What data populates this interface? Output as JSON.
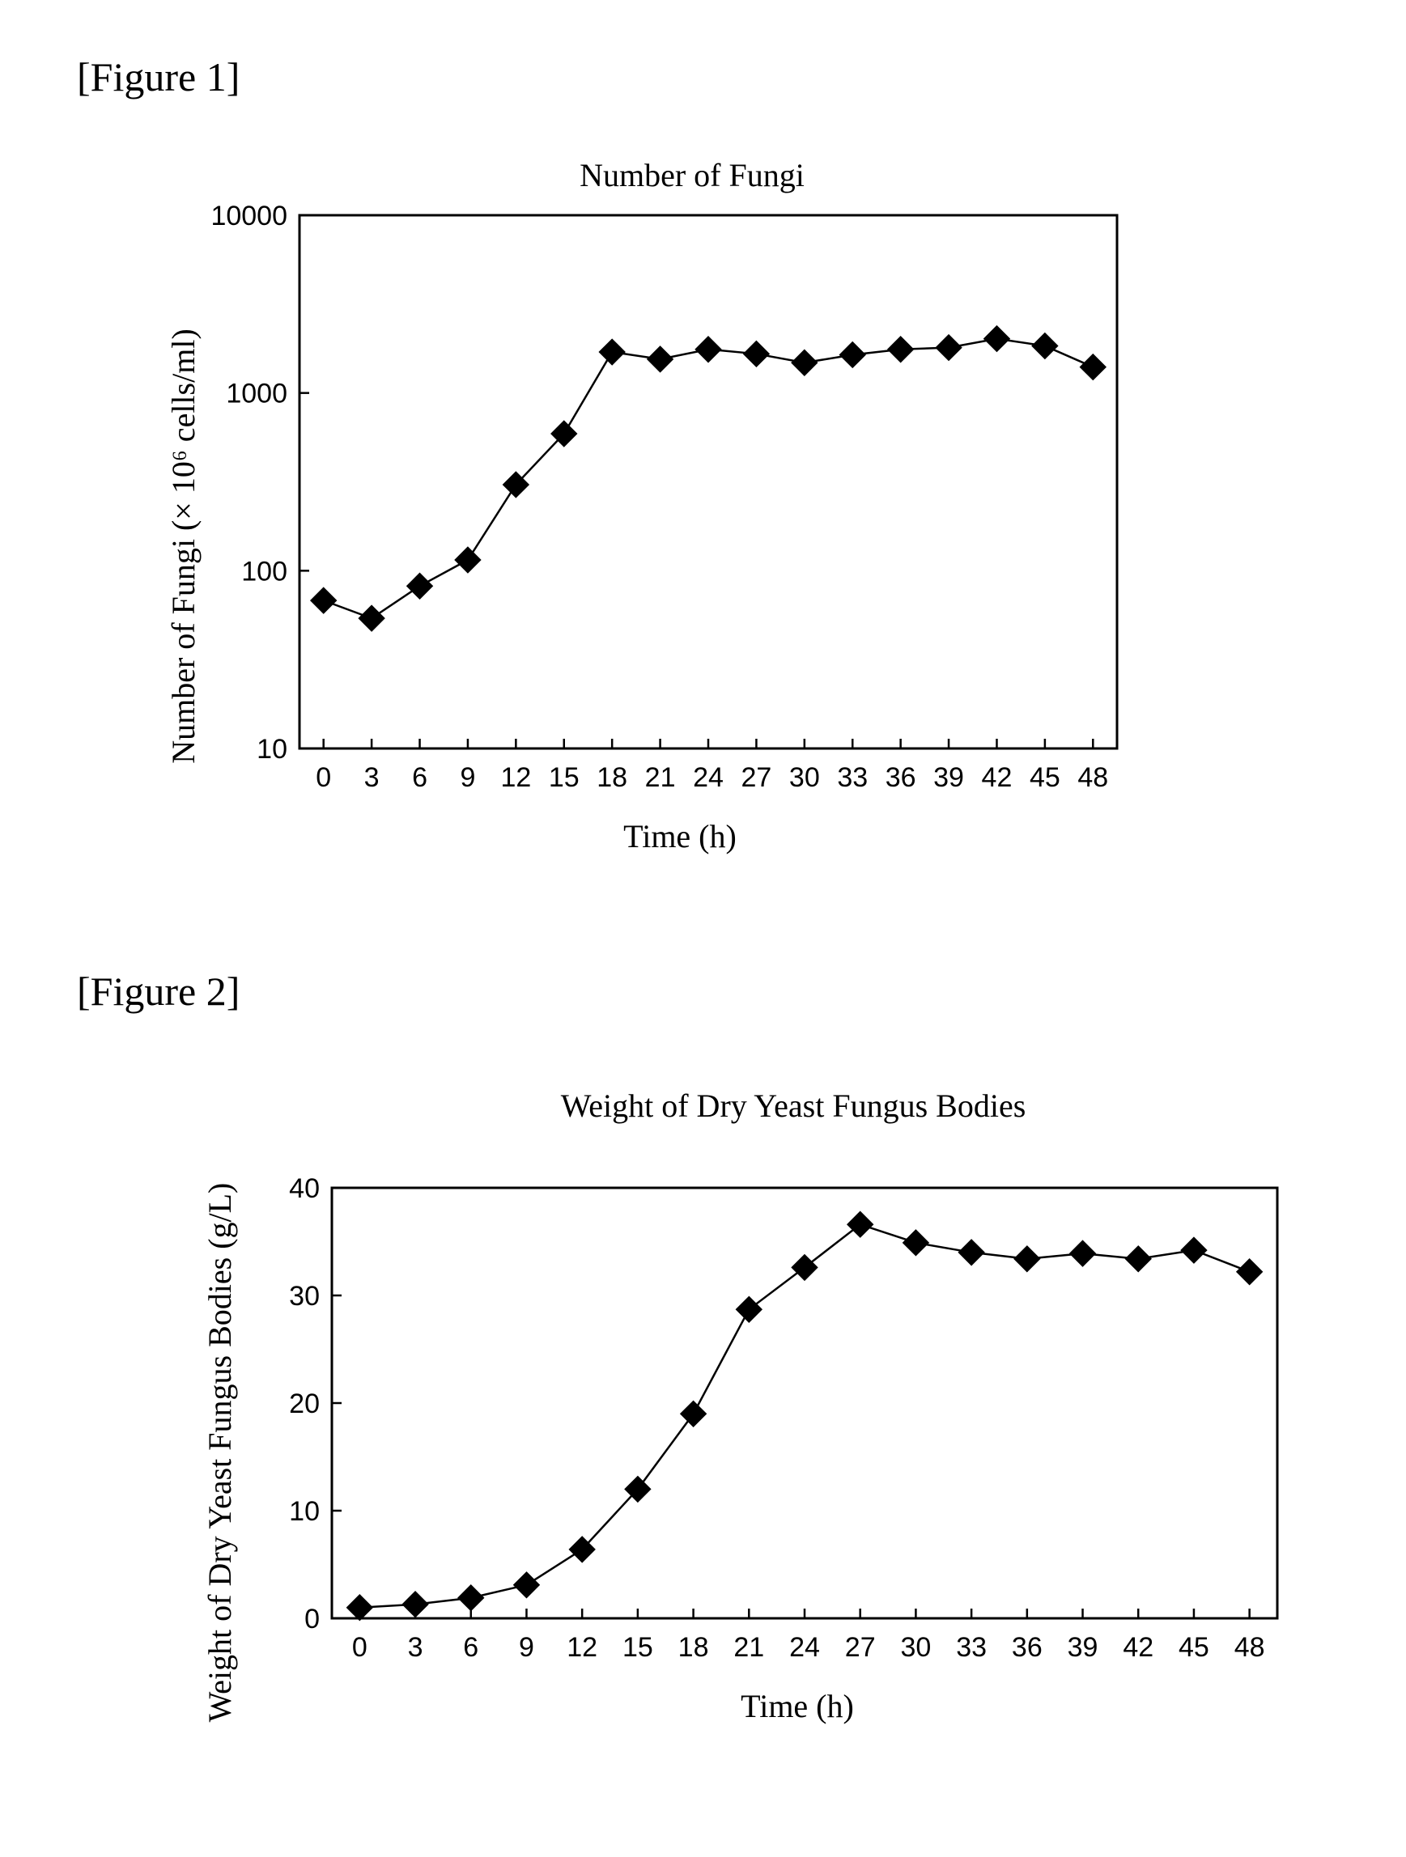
{
  "figures": [
    {
      "label": "[Figure 1]"
    },
    {
      "label": "[Figure 2]"
    }
  ],
  "chart_data": [
    {
      "type": "line",
      "title": "Number of Fungi",
      "xlabel": "Time (h)",
      "ylabel": "Number of Fungi (× 10⁶ cells/ml)",
      "yscale": "log",
      "ylim": [
        10,
        10000
      ],
      "yticks": [
        10,
        100,
        1000,
        10000
      ],
      "xticks": [
        0,
        3,
        6,
        9,
        12,
        15,
        18,
        21,
        24,
        27,
        30,
        33,
        36,
        39,
        42,
        45,
        48
      ],
      "xlim": [
        -1.5,
        49.5
      ],
      "grid": false,
      "marker": "diamond",
      "x": [
        0,
        3,
        6,
        9,
        12,
        15,
        18,
        21,
        24,
        27,
        30,
        33,
        36,
        39,
        42,
        45,
        48
      ],
      "series": [
        {
          "values": [
            68,
            54,
            82,
            115,
            305,
            590,
            1700,
            1550,
            1760,
            1660,
            1480,
            1640,
            1760,
            1800,
            2020,
            1840,
            1400
          ]
        }
      ]
    },
    {
      "type": "line",
      "title": "Weight of Dry Yeast Fungus Bodies",
      "xlabel": "Time (h)",
      "ylabel": "Weight of Dry Yeast Fungus Bodies (g/L)",
      "yscale": "linear",
      "ylim": [
        0,
        40
      ],
      "yticks": [
        0,
        10,
        20,
        30,
        40
      ],
      "xticks": [
        0,
        3,
        6,
        9,
        12,
        15,
        18,
        21,
        24,
        27,
        30,
        33,
        36,
        39,
        42,
        45,
        48
      ],
      "xlim": [
        -1.5,
        49.5
      ],
      "grid": false,
      "marker": "diamond",
      "x": [
        0,
        3,
        6,
        9,
        12,
        15,
        18,
        21,
        24,
        27,
        30,
        33,
        36,
        39,
        42,
        45,
        48
      ],
      "series": [
        {
          "values": [
            1.0,
            1.3,
            1.9,
            3.1,
            6.4,
            12.0,
            19.0,
            28.7,
            32.6,
            36.6,
            34.9,
            34.0,
            33.4,
            33.9,
            33.4,
            34.2,
            32.2
          ]
        }
      ]
    }
  ]
}
